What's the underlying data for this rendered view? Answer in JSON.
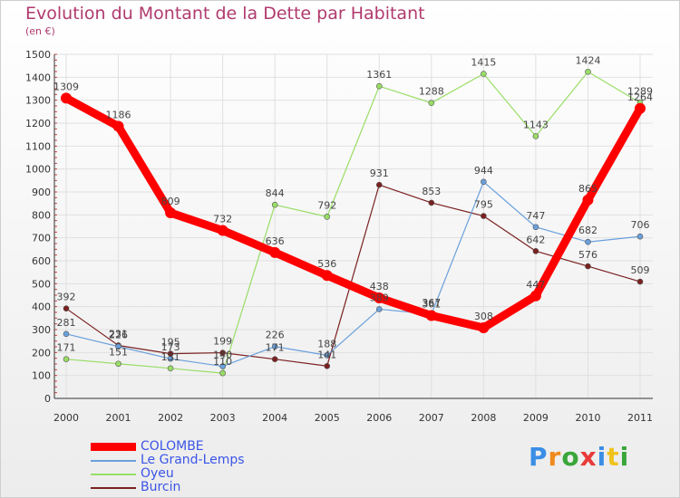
{
  "title": "Evolution du Montant de la Dette par Habitant",
  "subtitle": "(en €)",
  "chart_data": {
    "type": "line",
    "title": "Evolution du Montant de la Dette par Habitant",
    "ylabel": "(en €)",
    "xlabel": "",
    "x": [
      "2000",
      "2001",
      "2002",
      "2003",
      "2004",
      "2005",
      "2006",
      "2007",
      "2008",
      "2009",
      "2010",
      "2011"
    ],
    "ylim": [
      0,
      1500
    ],
    "yticks": [
      0,
      100,
      200,
      300,
      400,
      500,
      600,
      700,
      800,
      900,
      1000,
      1100,
      1200,
      1300,
      1400,
      1500
    ],
    "grid": true,
    "legend_position": "bottom-left",
    "series": [
      {
        "name": "COLOMBE",
        "color": "#ff0000",
        "values": [
          1309,
          1186,
          809,
          732,
          636,
          536,
          438,
          361,
          308,
          447,
          865,
          1264
        ]
      },
      {
        "name": "Le Grand-Lemps",
        "color": "#6aa0dc",
        "values": [
          281,
          226,
          173,
          140,
          226,
          188,
          389,
          367,
          944,
          747,
          682,
          706
        ]
      },
      {
        "name": "Oyeu",
        "color": "#99dd66",
        "values": [
          171,
          151,
          131,
          110,
          844,
          792,
          1361,
          1288,
          1415,
          1143,
          1424,
          1289
        ]
      },
      {
        "name": "Burcin",
        "color": "#7a2020",
        "values": [
          392,
          231,
          195,
          199,
          171,
          141,
          931,
          853,
          795,
          642,
          576,
          509
        ]
      }
    ]
  },
  "legend": {
    "items": [
      "COLOMBE",
      "Le Grand-Lemps",
      "Oyeu",
      "Burcin"
    ]
  },
  "logo": {
    "text": "Proxiti",
    "letters": [
      {
        "ch": "P",
        "color": "#3a8ee6"
      },
      {
        "ch": "r",
        "color": "#f08a1c"
      },
      {
        "ch": "o",
        "color": "#3aa63a"
      },
      {
        "ch": "x",
        "color": "#e83a3a"
      },
      {
        "ch": "i",
        "color": "#3a8ee6"
      },
      {
        "ch": "t",
        "color": "#f0c21c"
      },
      {
        "ch": "i",
        "color": "#3aa63a"
      }
    ]
  }
}
